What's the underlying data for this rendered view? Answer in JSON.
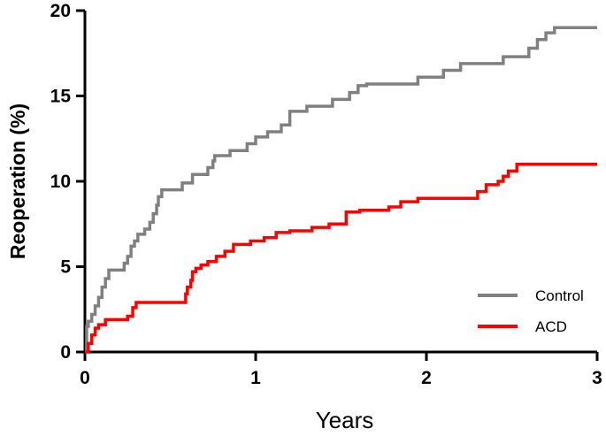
{
  "chart_data": {
    "type": "line",
    "step": true,
    "title": "",
    "xlabel": "Years",
    "ylabel": "Reoperation (%)",
    "xlim": [
      0,
      3
    ],
    "ylim": [
      0,
      20
    ],
    "xticks": [
      0,
      1,
      2,
      3
    ],
    "yticks": [
      0,
      5,
      10,
      15,
      20
    ],
    "xtick_labels": [
      "0",
      "1",
      "2",
      "3"
    ],
    "ytick_labels": [
      "0",
      "5",
      "10",
      "15",
      "20"
    ],
    "grid": false,
    "legend_position": "bottom-right",
    "series": [
      {
        "name": "Control",
        "color": "#808080",
        "x": [
          0,
          0.01,
          0.02,
          0.04,
          0.06,
          0.08,
          0.1,
          0.12,
          0.14,
          0.23,
          0.25,
          0.27,
          0.29,
          0.31,
          0.35,
          0.38,
          0.4,
          0.42,
          0.43,
          0.45,
          0.57,
          0.63,
          0.72,
          0.75,
          0.76,
          0.85,
          0.95,
          1.0,
          1.07,
          1.15,
          1.2,
          1.3,
          1.45,
          1.55,
          1.6,
          1.65,
          1.8,
          1.95,
          2.1,
          2.2,
          2.3,
          2.45,
          2.6,
          2.65,
          2.7,
          2.75,
          3.0
        ],
        "y": [
          0,
          1.5,
          1.8,
          2.2,
          2.7,
          3.2,
          3.8,
          4.3,
          4.8,
          5.2,
          5.6,
          6.2,
          6.5,
          6.9,
          7.2,
          7.6,
          8.1,
          8.6,
          9.1,
          9.5,
          9.9,
          10.4,
          10.8,
          11.2,
          11.5,
          11.8,
          12.2,
          12.6,
          12.9,
          13.3,
          14.1,
          14.4,
          14.8,
          15.2,
          15.6,
          15.7,
          15.7,
          16.1,
          16.5,
          16.9,
          16.9,
          17.3,
          17.8,
          18.3,
          18.7,
          19.0,
          19.0
        ]
      },
      {
        "name": "ACD",
        "color": "#ff0000",
        "x": [
          0,
          0.02,
          0.04,
          0.06,
          0.08,
          0.12,
          0.25,
          0.28,
          0.3,
          0.59,
          0.6,
          0.62,
          0.63,
          0.65,
          0.68,
          0.72,
          0.77,
          0.82,
          0.87,
          0.97,
          1.05,
          1.12,
          1.2,
          1.33,
          1.43,
          1.53,
          1.61,
          1.68,
          1.78,
          1.85,
          1.95,
          2.05,
          2.2,
          2.3,
          2.35,
          2.42,
          2.45,
          2.48,
          2.53,
          3.0
        ],
        "y": [
          0,
          0.5,
          1.0,
          1.4,
          1.6,
          1.9,
          2.1,
          2.6,
          2.9,
          3.4,
          3.8,
          4.2,
          4.7,
          4.9,
          5.1,
          5.3,
          5.6,
          5.9,
          6.3,
          6.5,
          6.7,
          7.0,
          7.1,
          7.3,
          7.5,
          8.2,
          8.3,
          8.3,
          8.5,
          8.8,
          9.0,
          9.0,
          9.0,
          9.4,
          9.8,
          10.0,
          10.3,
          10.6,
          11.0,
          11.0
        ]
      }
    ]
  }
}
